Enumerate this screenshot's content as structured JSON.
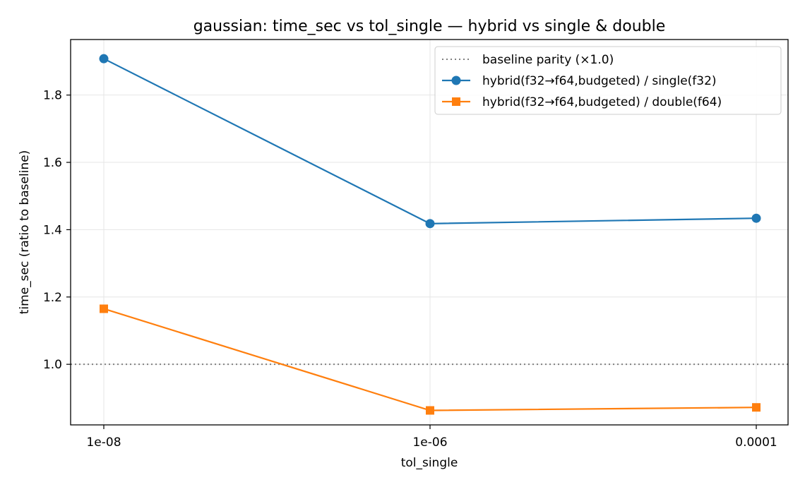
{
  "chart_data": {
    "type": "line",
    "title": "gaussian: time_sec vs tol_single — hybrid vs single & double",
    "xlabel": "tol_single",
    "ylabel": "time_sec (ratio to baseline)",
    "categories": [
      "1e-08",
      "1e-06",
      "0.0001"
    ],
    "yticks": [
      1.0,
      1.2,
      1.4,
      1.6,
      1.8
    ],
    "ytick_labels": [
      "1.0",
      "1.2",
      "1.4",
      "1.6",
      "1.8"
    ],
    "ylim": [
      0.82,
      1.965
    ],
    "grid": true,
    "legend_position": "top-right",
    "baseline": {
      "name": "baseline parity (×1.0)",
      "value": 1.0,
      "color": "#808080",
      "style": "dotted"
    },
    "series": [
      {
        "name": "hybrid(f32→f64,budgeted) / single(f32)",
        "values": [
          1.908,
          1.418,
          1.434
        ],
        "color": "#1f77b4",
        "marker": "circle"
      },
      {
        "name": "hybrid(f32→f64,budgeted) / double(f64)",
        "values": [
          1.165,
          0.863,
          0.872
        ],
        "color": "#ff7f0e",
        "marker": "square"
      }
    ]
  }
}
